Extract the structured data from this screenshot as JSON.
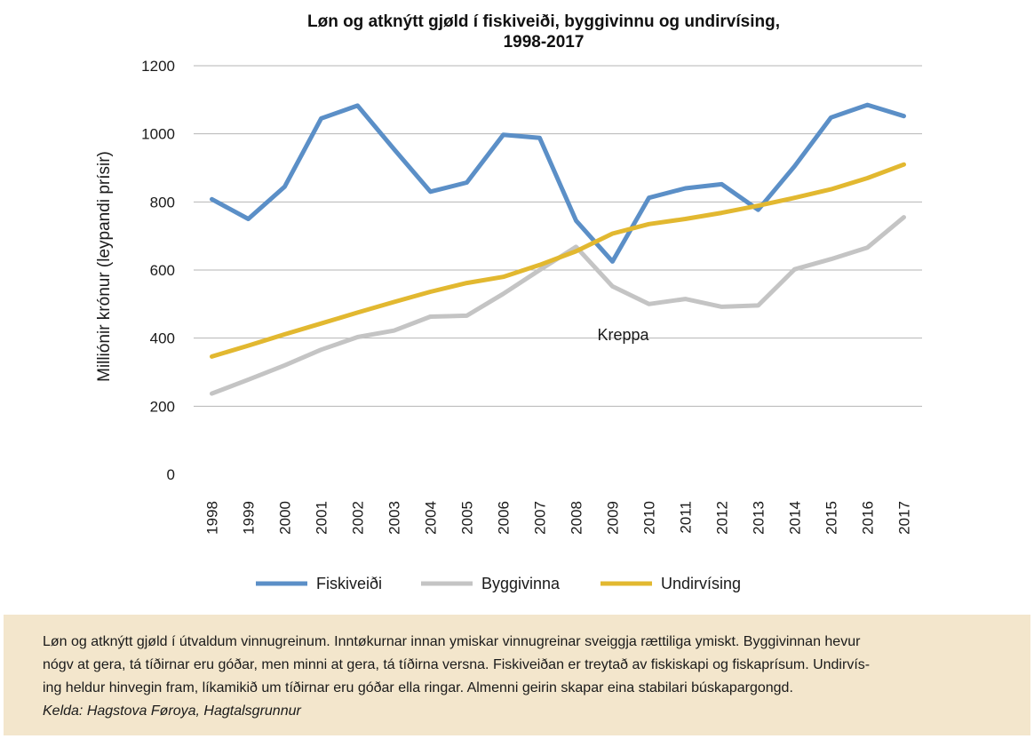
{
  "chart_data": {
    "type": "line",
    "title_lines": [
      "Løn og atknýtt gjøld í fiskiveiði, byggivinnu og undirvísing,",
      "1998-2017"
    ],
    "ylabel": "Milliónir krónur (leypandi prísir)",
    "ylim": [
      0,
      1200
    ],
    "yticks": [
      0,
      200,
      400,
      600,
      800,
      1000,
      1200
    ],
    "ytick_labels": [
      "0",
      "200",
      "400",
      "600",
      "800",
      "1000",
      "1200"
    ],
    "grid": true,
    "legend_position": "bottom",
    "categories": [
      "1998",
      "1999",
      "2000",
      "2001",
      "2002",
      "2003",
      "2004",
      "2005",
      "2006",
      "2007",
      "2008",
      "2009",
      "2010",
      "2011",
      "2012",
      "2013",
      "2014",
      "2015",
      "2016",
      "2017"
    ],
    "series": [
      {
        "name": "Fiskiveiði",
        "color": "#5b8fc7",
        "values": [
          808,
          750,
          845,
          1045,
          1083,
          955,
          830,
          857,
          997,
          988,
          745,
          625,
          812,
          840,
          852,
          777,
          905,
          1048,
          1085,
          1052
        ]
      },
      {
        "name": "Byggivinna",
        "color": "#c4c4c4",
        "values": [
          237,
          278,
          320,
          366,
          403,
          422,
          463,
          466,
          530,
          600,
          668,
          552,
          500,
          515,
          492,
          496,
          602,
          632,
          666,
          755
        ]
      },
      {
        "name": "Undirvísing",
        "color": "#e2b830",
        "values": [
          346,
          378,
          411,
          443,
          475,
          506,
          536,
          562,
          580,
          615,
          655,
          707,
          735,
          750,
          768,
          789,
          812,
          837,
          870,
          910
        ]
      }
    ],
    "annotations": [
      {
        "text": "Kreppa",
        "x": "2009",
        "y": 410
      }
    ]
  },
  "caption": {
    "lines": [
      "Løn og atknýtt gjøld í útvaldum vinnugreinum. Inntøkurnar innan ymiskar vinnugreinar sveiggja rættiliga ymiskt. Byggivinnan hevur",
      "nógv at gera, tá tíðirnar eru góðar, men minni at gera, tá tíðirna versna. Fiskiveiðan er treytað av fiskiskapi og fiskaprísum. Undirvís-",
      "ing heldur hinvegin fram, líkamikið um tíðirnar eru góðar ella ringar. Almenni geirin skapar eina stabilari búskapargongd."
    ],
    "source": "Kelda: Hagstova Føroya, Hagtalsgrunnur"
  }
}
